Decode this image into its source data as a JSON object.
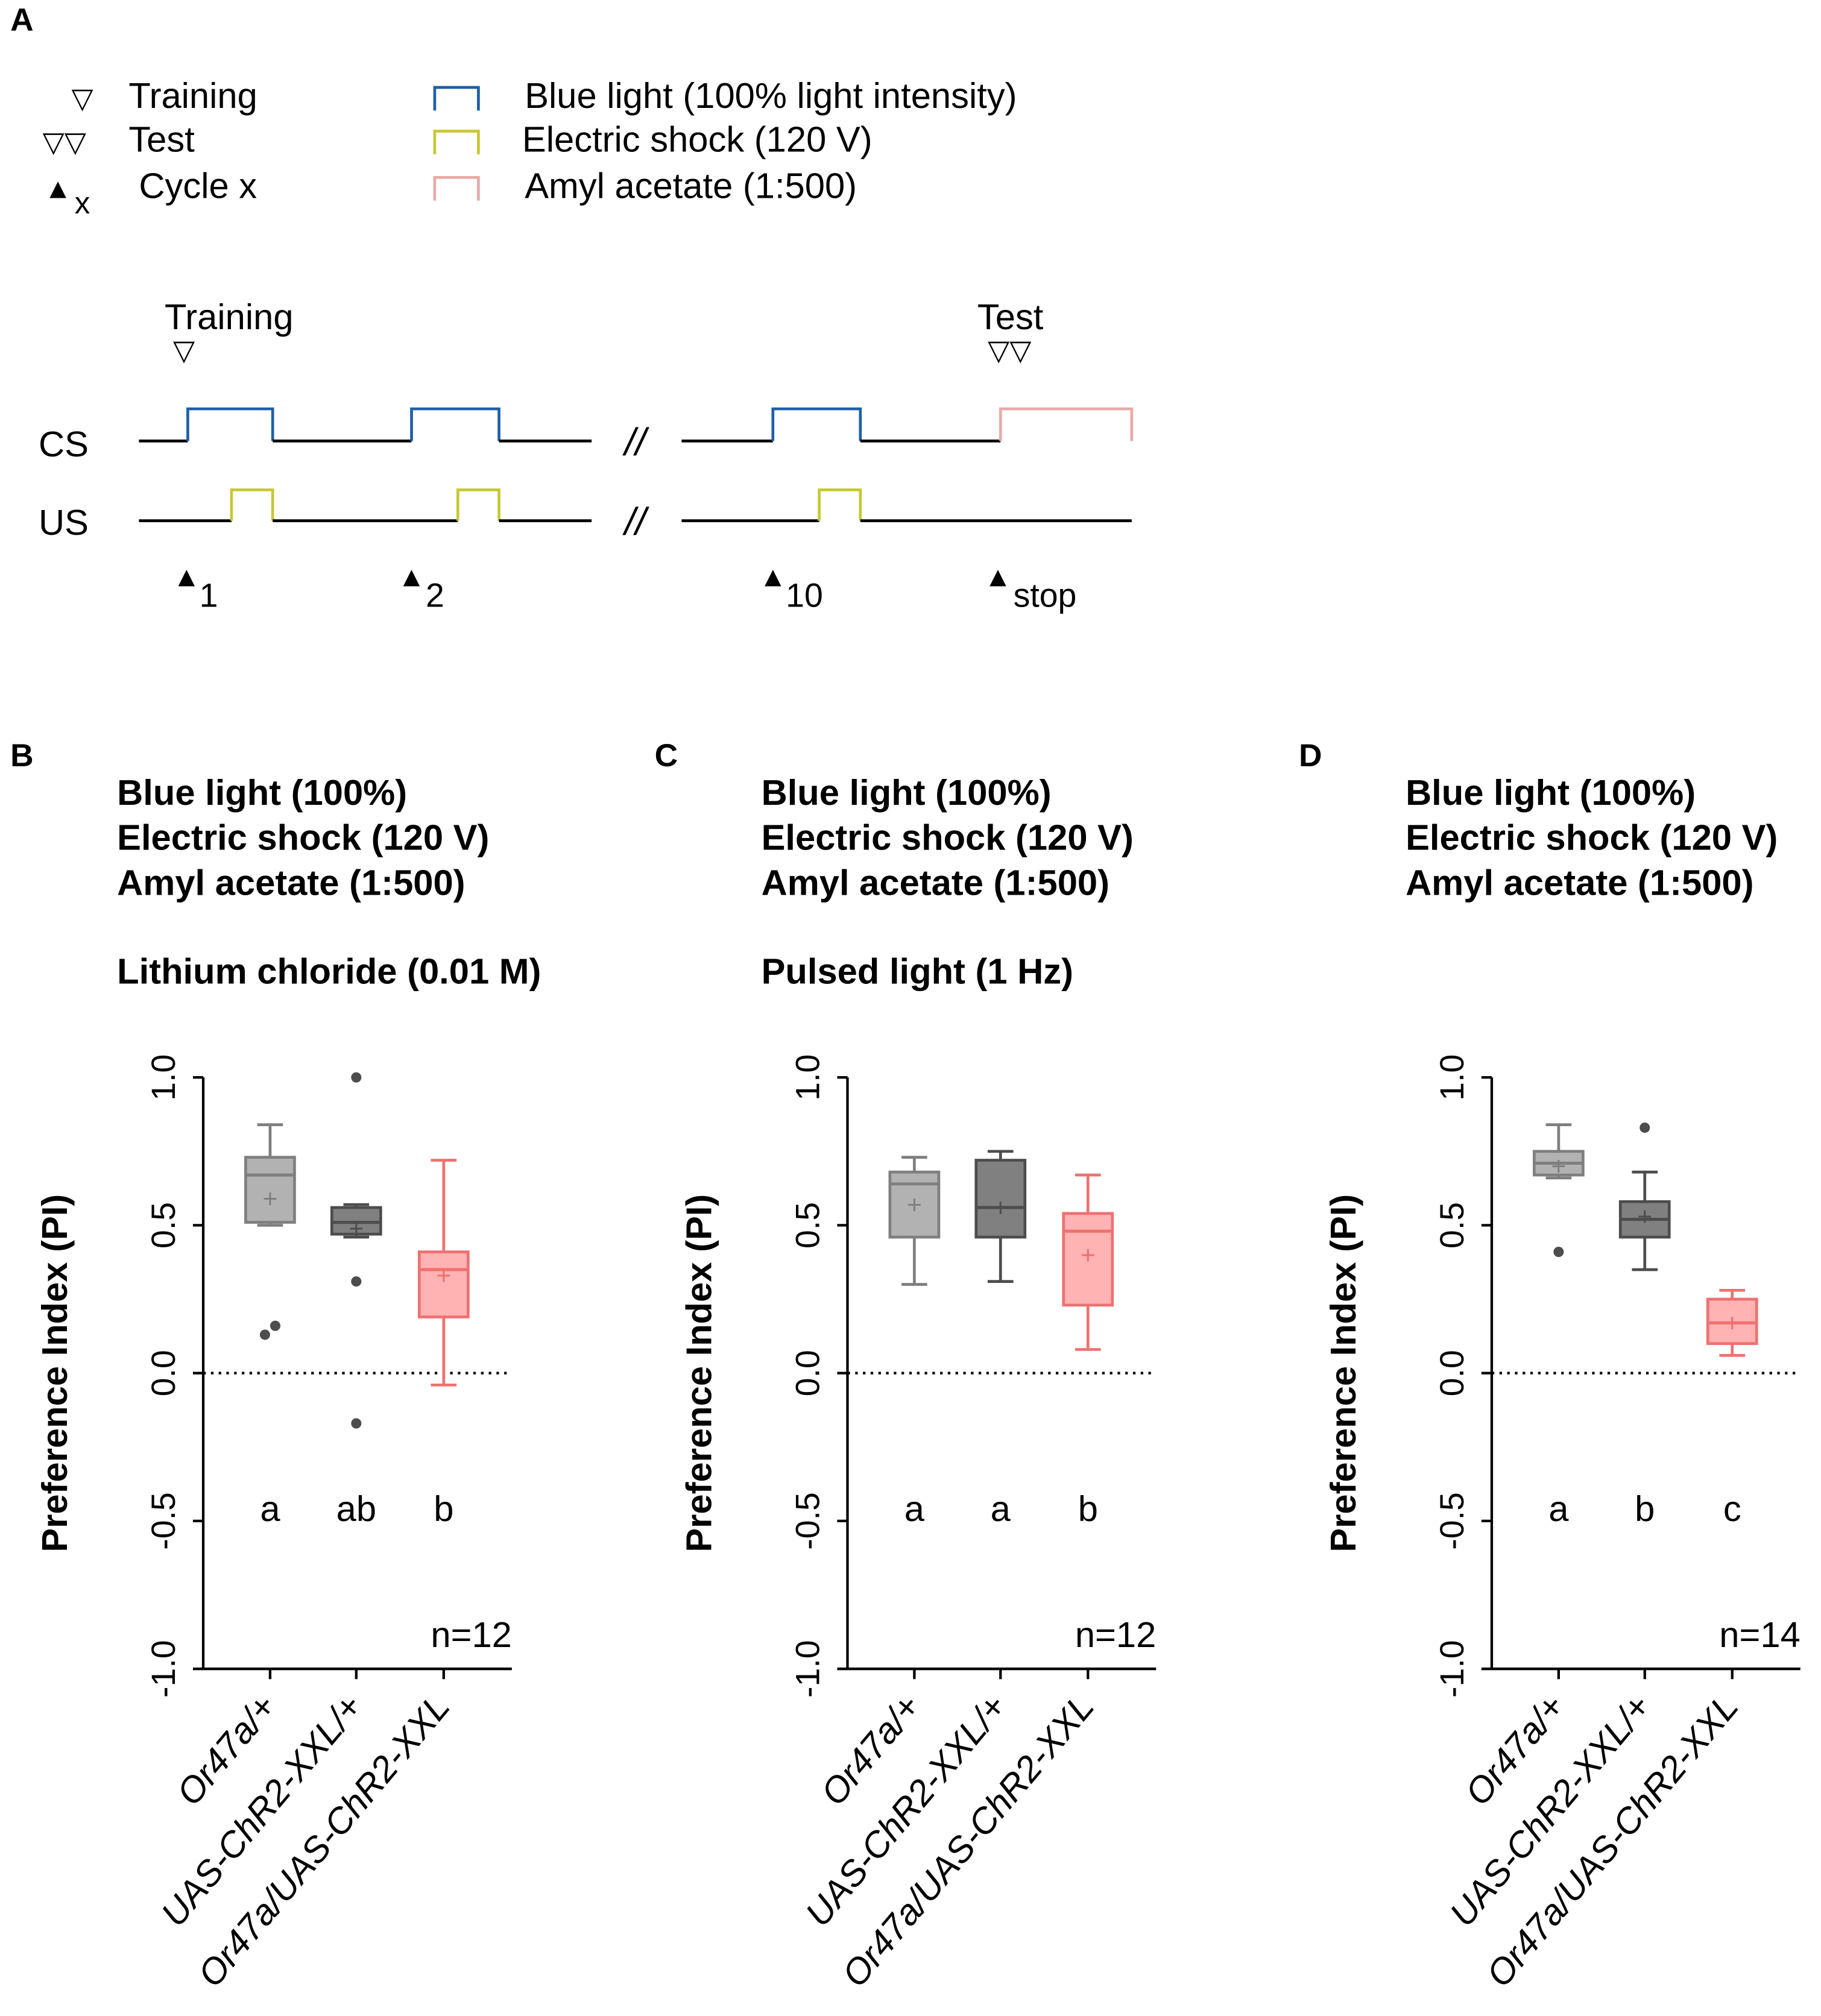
{
  "panel_a": {
    "label": "A",
    "legend": {
      "training_glyph": "▽",
      "training": "Training",
      "test_glyph": "▽▽",
      "test": "Test",
      "cycle_glyph": "▲",
      "cycle_sub": "x",
      "cycle": "Cycle x",
      "blue_light": "Blue light (100% light intensity)",
      "electric_shock": "Electric shock (120 V)",
      "amyl_acetate": "Amyl acetate (1:500)"
    },
    "timeline": {
      "training_label": "Training",
      "test_label": "Test",
      "cs_label": "CS",
      "us_label": "US",
      "break_mark": "//",
      "cycles": [
        "1",
        "2",
        "10",
        "stop"
      ]
    }
  },
  "colors": {
    "blue_light": "#1f5fa8",
    "electric_shock": "#c8c832",
    "amyl_acetate": "#e8aaa8",
    "ctrl1_fill": "#b2b2b2",
    "ctrl1_stroke": "#7f7f7f",
    "ctrl2_fill": "#808080",
    "ctrl2_stroke": "#4d4d4d",
    "exp_fill": "#ffb3b3",
    "exp_stroke": "#f07070"
  },
  "chart_data": [
    {
      "type": "box",
      "panel": "B",
      "title_lines": [
        "Blue light (100%)",
        "Electric shock (120 V)",
        "Amyl acetate (1:500)"
      ],
      "subtitle": "Lithium chloride (0.01 M)",
      "ylabel": "Preference Index (PI)",
      "ylim": [
        -1.0,
        1.0
      ],
      "yticks": [
        "-1.0",
        "-0.5",
        "0.0",
        "0.5",
        "1.0"
      ],
      "categories": [
        "Or47a/+",
        "UAS-ChR2-XXL/+",
        "Or47a/UAS-ChR2-XXL"
      ],
      "n_label": "n=12",
      "groups": [
        {
          "name": "Or47a/+",
          "whisker_low": 0.5,
          "q1": 0.51,
          "median": 0.67,
          "q3": 0.73,
          "whisker_high": 0.84,
          "mean": 0.59,
          "outliers": [
            0.13,
            0.16
          ],
          "letter": "a"
        },
        {
          "name": "UAS-ChR2-XXL/+",
          "whisker_low": 0.46,
          "q1": 0.47,
          "median": 0.51,
          "q3": 0.56,
          "whisker_high": 0.57,
          "mean": 0.49,
          "outliers": [
            1.0,
            0.31,
            -0.17
          ],
          "letter": "ab"
        },
        {
          "name": "Or47a/UAS-ChR2-XXL",
          "whisker_low": -0.04,
          "q1": 0.19,
          "median": 0.35,
          "q3": 0.41,
          "whisker_high": 0.72,
          "mean": 0.33,
          "outliers": [],
          "letter": "b"
        }
      ]
    },
    {
      "type": "box",
      "panel": "C",
      "title_lines": [
        "Blue light (100%)",
        "Electric shock (120 V)",
        "Amyl acetate (1:500)"
      ],
      "subtitle": "Pulsed light (1 Hz)",
      "ylabel": "Preference Index (PI)",
      "ylim": [
        -1.0,
        1.0
      ],
      "yticks": [
        "-1.0",
        "-0.5",
        "0.0",
        "0.5",
        "1.0"
      ],
      "categories": [
        "Or47a/+",
        "UAS-ChR2-XXL/+",
        "Or47a/UAS-ChR2-XXL"
      ],
      "n_label": "n=12",
      "groups": [
        {
          "name": "Or47a/+",
          "whisker_low": 0.3,
          "q1": 0.46,
          "median": 0.64,
          "q3": 0.68,
          "whisker_high": 0.73,
          "mean": 0.57,
          "outliers": [],
          "letter": "a"
        },
        {
          "name": "UAS-ChR2-XXL/+",
          "whisker_low": 0.31,
          "q1": 0.46,
          "median": 0.56,
          "q3": 0.72,
          "whisker_high": 0.75,
          "mean": 0.56,
          "outliers": [],
          "letter": "a"
        },
        {
          "name": "Or47a/UAS-ChR2-XXL",
          "whisker_low": 0.08,
          "q1": 0.23,
          "median": 0.48,
          "q3": 0.54,
          "whisker_high": 0.67,
          "mean": 0.4,
          "outliers": [],
          "letter": "b"
        }
      ]
    },
    {
      "type": "box",
      "panel": "D",
      "title_lines": [
        "Blue light (100%)",
        "Electric shock (120 V)",
        "Amyl acetate (1:500)"
      ],
      "subtitle": "",
      "ylabel": "Preference Index (PI)",
      "ylim": [
        -1.0,
        1.0
      ],
      "yticks": [
        "-1.0",
        "-0.5",
        "0.0",
        "0.5",
        "1.0"
      ],
      "categories": [
        "Or47a/+",
        "UAS-ChR2-XXL/+",
        "Or47a/UAS-ChR2-XXL"
      ],
      "n_label": "n=14",
      "groups": [
        {
          "name": "Or47a/+",
          "whisker_low": 0.66,
          "q1": 0.67,
          "median": 0.71,
          "q3": 0.75,
          "whisker_high": 0.84,
          "mean": 0.7,
          "outliers": [
            0.41
          ],
          "letter": "a"
        },
        {
          "name": "UAS-ChR2-XXL/+",
          "whisker_low": 0.35,
          "q1": 0.46,
          "median": 0.52,
          "q3": 0.58,
          "whisker_high": 0.68,
          "mean": 0.53,
          "outliers": [
            0.83
          ],
          "letter": "b"
        },
        {
          "name": "Or47a/UAS-ChR2-XXL",
          "whisker_low": 0.06,
          "q1": 0.1,
          "median": 0.17,
          "q3": 0.25,
          "whisker_high": 0.28,
          "mean": 0.17,
          "outliers": [],
          "letter": "c"
        }
      ]
    }
  ]
}
